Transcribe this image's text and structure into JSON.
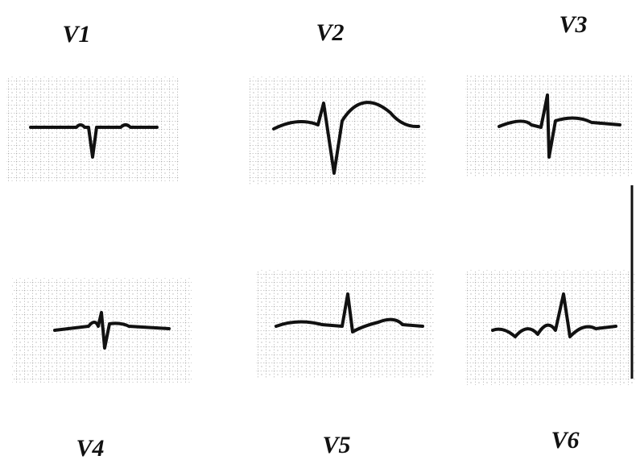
{
  "leads": [
    {
      "label": "V1"
    },
    {
      "label": "V2"
    },
    {
      "label": "V3"
    },
    {
      "label": "V4"
    },
    {
      "label": "V5"
    },
    {
      "label": "V6"
    }
  ]
}
